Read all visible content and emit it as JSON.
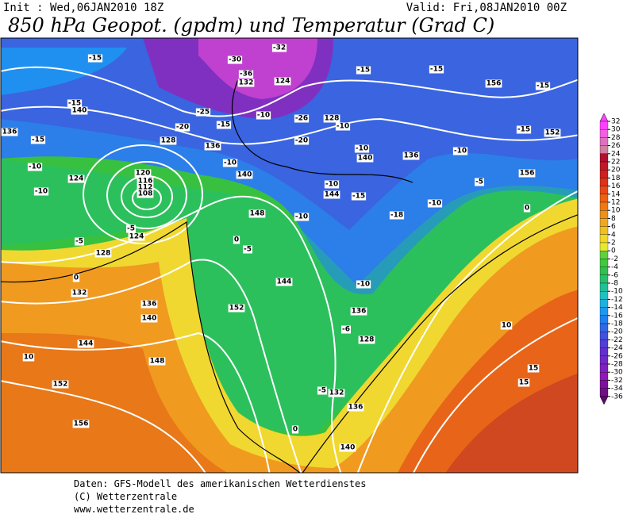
{
  "header": {
    "init": "Init : Wed,06JAN2010 18Z",
    "valid": "Valid: Fri,08JAN2010 00Z",
    "title": "850 hPa Geopot. (gpdm) und Temperatur (Grad C)"
  },
  "map": {
    "labels": [
      "-15",
      "-15",
      "140",
      "136",
      "-15",
      "-10",
      "124",
      "-10",
      "120",
      "116",
      "112",
      "108",
      "-5",
      "124",
      "-5",
      "128",
      "0",
      "132",
      "136",
      "140",
      "144",
      "10",
      "148",
      "152",
      "156",
      "-25",
      "-20",
      "-15",
      "128",
      "136",
      "-10",
      "140",
      "148",
      "0",
      "-5",
      "152",
      "144",
      "-10",
      "-10",
      "144",
      "-15",
      "-18",
      "-10",
      "-10",
      "136",
      "-6",
      "128",
      "-5",
      "132",
      "136",
      "140",
      "0",
      "15",
      "15",
      "10",
      "0",
      "-5",
      "156",
      "-10",
      "152",
      "-15",
      "156",
      "-15",
      "-15",
      "-15",
      "-10",
      "128",
      "-20",
      "-10",
      "140",
      "136",
      "-26",
      "-10",
      "-36",
      "132",
      "124",
      "-30",
      "-32"
    ]
  },
  "colorbar": {
    "ticks": [
      32,
      30,
      28,
      26,
      24,
      22,
      20,
      18,
      16,
      14,
      12,
      10,
      8,
      6,
      4,
      2,
      0,
      -2,
      -4,
      -6,
      -8,
      -10,
      -12,
      -14,
      -16,
      -18,
      -20,
      -22,
      -24,
      -26,
      -28,
      -30,
      -32,
      -34,
      -36
    ],
    "colors": [
      "#ff40ff",
      "#f060e0",
      "#e070c0",
      "#d080a0",
      "#b01030",
      "#c01828",
      "#d02020",
      "#e03018",
      "#e84818",
      "#f06010",
      "#f07810",
      "#f09018",
      "#f0a820",
      "#f0c020",
      "#f0d828",
      "#e8e830",
      "#60d040",
      "#40c840",
      "#30c050",
      "#28c070",
      "#20c098",
      "#20c0c0",
      "#20b0e0",
      "#2098f0",
      "#2080f0",
      "#3068e8",
      "#4050e0",
      "#5040d8",
      "#6030d0",
      "#7028c8",
      "#8020c0",
      "#9018b8",
      "#8010a0",
      "#701088",
      "#600870"
    ]
  },
  "footer": [
    "Daten: GFS-Modell des amerikanischen Wetterdienstes",
    "(C) Wetterzentrale",
    "www.wetterzentrale.de"
  ]
}
